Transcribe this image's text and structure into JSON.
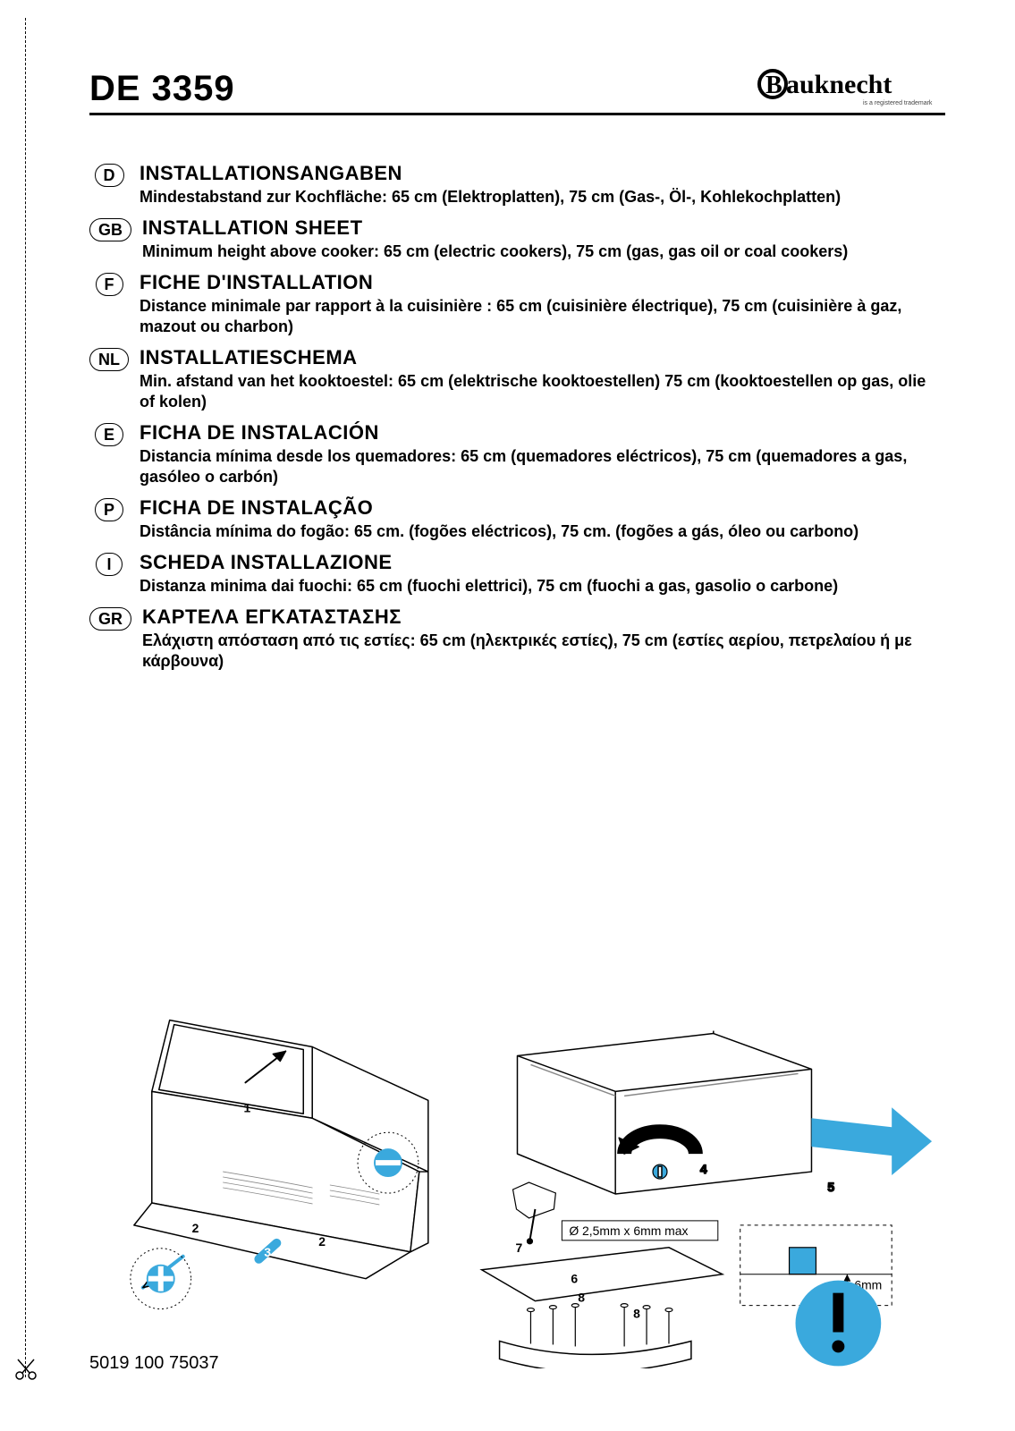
{
  "header": {
    "model": "DE 3359",
    "brand": "Bauknecht",
    "tagline": "is a registered trademark"
  },
  "languages": [
    {
      "code": "D",
      "title": "INSTALLATIONSANGABEN",
      "body": "Mindestabstand zur Kochfläche: 65 cm (Elektroplatten), 75 cm (Gas-, Öl-, Kohlekochplatten)"
    },
    {
      "code": "GB",
      "title": "INSTALLATION SHEET",
      "body": "Minimum height above cooker: 65 cm (electric cookers), 75 cm (gas, gas oil or coal cookers)"
    },
    {
      "code": "F",
      "title": "FICHE D'INSTALLATION",
      "body": "Distance minimale par rapport à la cuisinière : 65 cm (cuisinière électrique), 75 cm (cuisinière à gaz, mazout ou charbon)"
    },
    {
      "code": "NL",
      "title": "INSTALLATIESCHEMA",
      "body": "Min. afstand van het kooktoestel: 65 cm (elektrische kooktoestellen) 75 cm (kooktoestellen op gas, olie of kolen)"
    },
    {
      "code": "E",
      "title": "FICHA DE INSTALACIÓN",
      "body": "Distancia mínima desde los quemadores: 65 cm (quemadores eléctricos), 75 cm (quemadores a gas, gasóleo o carbón)"
    },
    {
      "code": "P",
      "title": "FICHA DE INSTALAÇÃO",
      "body": "Distância mínima do fogão: 65 cm. (fogões eléctricos), 75 cm. (fogões a gás, óleo ou carbono)"
    },
    {
      "code": "I",
      "title": "SCHEDA INSTALLAZIONE",
      "body": "Distanza minima dai fuochi: 65 cm (fuochi elettrici), 75 cm (fuochi a gas, gasolio o carbone)"
    },
    {
      "code": "GR",
      "title": "ΚΑΡΤΕΛΑ ΕΓΚΑΤΑΣΤΑΣΗΣ",
      "body": "Ελάχιστη απόσταση από τις εστίες: 65 cm (ηλεκτρικές εστίες), 75 cm (εστίες αερίου, πετρελαίου ή με κάρβουνα)"
    }
  ],
  "diagram": {
    "accent_color": "#3aa9dd",
    "dark": "#3a6f8c",
    "stroke": "#000000",
    "light_stroke": "#808080",
    "callouts": [
      "1",
      "2",
      "2",
      "3",
      "4",
      "5",
      "6",
      "7",
      "8",
      "8"
    ],
    "screw_spec": "Ø 2,5mm x 6mm max",
    "depth_label": "6mm"
  },
  "footer": {
    "partno": "5019 100 75037"
  }
}
